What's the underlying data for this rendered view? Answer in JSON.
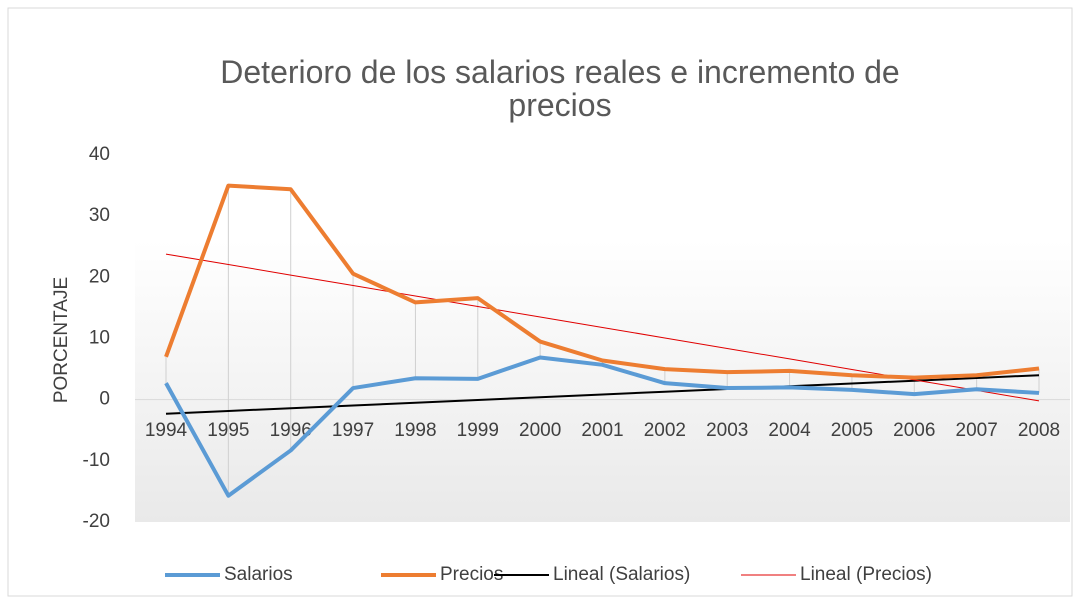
{
  "chart_data": {
    "type": "line",
    "title": "Deterioro de los salarios reales e incremento de precios",
    "y_label": "PORCENTAJE",
    "categories": [
      "1994",
      "1995",
      "1996",
      "1997",
      "1998",
      "1999",
      "2000",
      "2001",
      "2002",
      "2003",
      "2004",
      "2005",
      "2006",
      "2007",
      "2008"
    ],
    "series": [
      {
        "name": "Salarios",
        "color": "#5b9bd5",
        "line_width": 4,
        "values": [
          2.7,
          -15.7,
          -8.3,
          1.9,
          3.5,
          3.4,
          6.9,
          5.7,
          2.7,
          1.9,
          2.0,
          1.6,
          0.9,
          1.7,
          1.1
        ]
      },
      {
        "name": "Precios",
        "color": "#ed7d31",
        "line_width": 4,
        "values": [
          7.0,
          35.0,
          34.4,
          20.6,
          15.9,
          16.6,
          9.5,
          6.4,
          5.0,
          4.5,
          4.7,
          4.0,
          3.6,
          4.0,
          5.1
        ]
      },
      {
        "name": "Lineal (Salarios)",
        "color": "#000000",
        "line_width": 2,
        "values": [
          -2.3,
          -1.85,
          -1.4,
          -0.95,
          -0.5,
          -0.05,
          0.4,
          0.85,
          1.3,
          1.75,
          2.2,
          2.65,
          3.1,
          3.55,
          4.0
        ]
      },
      {
        "name": "Lineal (Precios)",
        "color": "#e00000",
        "line_width": 1,
        "values": [
          23.8,
          22.09,
          20.37,
          18.66,
          16.94,
          15.23,
          13.51,
          11.8,
          10.09,
          8.37,
          6.66,
          4.94,
          3.23,
          1.51,
          -0.2
        ]
      }
    ],
    "ylim": [
      -20,
      40
    ],
    "yticks": [
      -20,
      -10,
      0,
      10,
      20,
      30,
      40
    ],
    "grid": false,
    "legend": "bottom"
  }
}
